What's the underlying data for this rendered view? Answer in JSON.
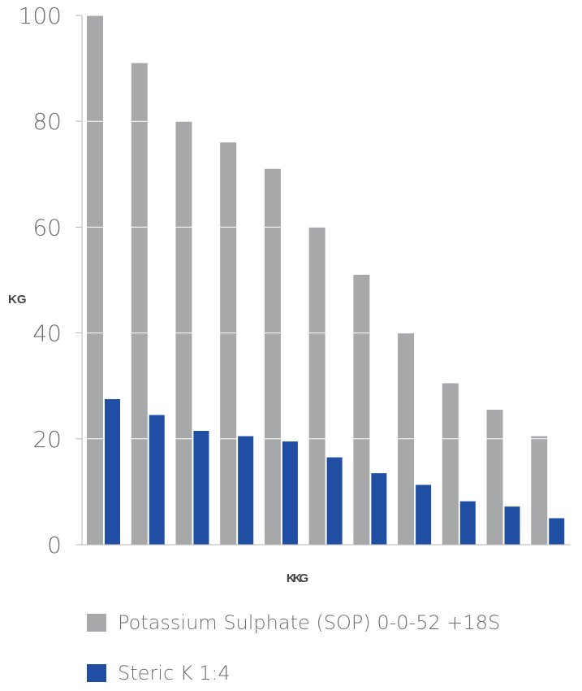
{
  "chart_data": {
    "type": "bar",
    "title": "",
    "ylabel": "KG",
    "xlabel": "KKG",
    "ylim": [
      0,
      100
    ],
    "yticks": [
      0,
      20,
      40,
      60,
      80,
      100
    ],
    "grid": "horizontal",
    "legend_position": "bottom",
    "categories": [
      "",
      "",
      "",
      "",
      "",
      "",
      "",
      "",
      "",
      "",
      ""
    ],
    "series": [
      {
        "name": "Potassium Sulphate (SOP) 0-0-52 +18S",
        "color": "#a7a8aa",
        "values": [
          100,
          91,
          80,
          76,
          71,
          60,
          51,
          40,
          30.5,
          25.5,
          20.5
        ]
      },
      {
        "name": "Steric K 1:4",
        "color": "#1f4ea3",
        "values": [
          27.5,
          24.5,
          21.5,
          20.5,
          19.5,
          16.5,
          13.5,
          11.3,
          8.2,
          7.2,
          5
        ]
      }
    ]
  }
}
